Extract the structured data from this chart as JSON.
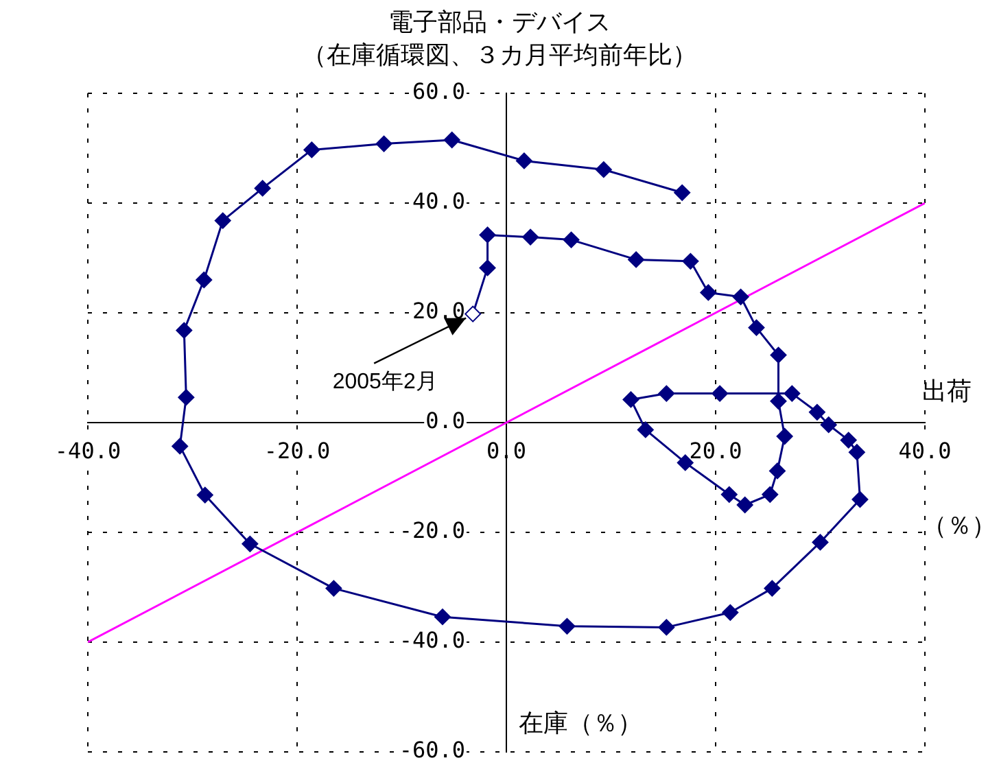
{
  "chart_data": {
    "type": "line",
    "title": "電子部品・デバイス",
    "subtitle": "（在庫循環図、３カ月平均前年比）",
    "xlabel": "出荷（％）",
    "ylabel": "在庫（％）",
    "xlim": [
      -40,
      40
    ],
    "ylim": [
      -60,
      60
    ],
    "xticks": [
      {
        "value": -40,
        "label": "-40.0"
      },
      {
        "value": -20,
        "label": "-20.0"
      },
      {
        "value": 0,
        "label": "0.0"
      },
      {
        "value": 20,
        "label": "20.0"
      },
      {
        "value": 40,
        "label": "40.0"
      }
    ],
    "yticks": [
      {
        "value": -60,
        "label": "-60.0"
      },
      {
        "value": -40,
        "label": "-40.0"
      },
      {
        "value": -20,
        "label": "-20.0"
      },
      {
        "value": 0,
        "label": "0.0"
      },
      {
        "value": 20,
        "label": "20.0"
      },
      {
        "value": 40,
        "label": "40.0"
      },
      {
        "value": 60,
        "label": "60.0"
      }
    ],
    "grid": true,
    "legend": false,
    "marker": "diamond",
    "line_style": "solid",
    "series": [
      {
        "color": "#000080",
        "x": [
          -3.2,
          -1.8,
          -1.8,
          2.3,
          6.2,
          12.4,
          17.6,
          19.3,
          22.4,
          23.9,
          26.0,
          26.0,
          26.6,
          25.9,
          25.2,
          22.8,
          21.3,
          17.1,
          13.3,
          11.9,
          15.3,
          20.4,
          27.3,
          29.7,
          30.8,
          32.7,
          33.5,
          33.8,
          30.0,
          25.4,
          21.4,
          15.3,
          5.8,
          -6.1,
          -16.5,
          -24.5,
          -28.8,
          -31.2,
          -30.6,
          -30.8,
          -28.9,
          -27.1,
          -23.3,
          -18.6,
          -11.7,
          -5.2,
          1.7,
          9.3,
          16.8
        ],
        "values": [
          19.8,
          28.2,
          34.2,
          33.8,
          33.3,
          29.7,
          29.4,
          23.7,
          22.9,
          17.3,
          12.3,
          3.9,
          -2.5,
          -8.8,
          -13.1,
          -15.0,
          -13.1,
          -7.3,
          -1.3,
          4.2,
          5.3,
          5.3,
          5.3,
          1.9,
          -0.4,
          -3.2,
          -5.4,
          -14.0,
          -21.8,
          -30.2,
          -34.6,
          -37.3,
          -37.1,
          -35.4,
          -30.2,
          -22.1,
          -13.2,
          -4.3,
          4.6,
          16.8,
          26.0,
          36.8,
          42.7,
          49.7,
          50.8,
          51.5,
          47.7,
          46.1,
          41.9
        ]
      },
      {
        "type": "line",
        "color": "#ff00ff",
        "marker": "none",
        "x": [
          -40,
          40
        ],
        "values": [
          -40,
          40
        ]
      }
    ],
    "annotations": [
      {
        "text": "2005年2月",
        "x": -3.2,
        "y": 19.8
      }
    ]
  }
}
